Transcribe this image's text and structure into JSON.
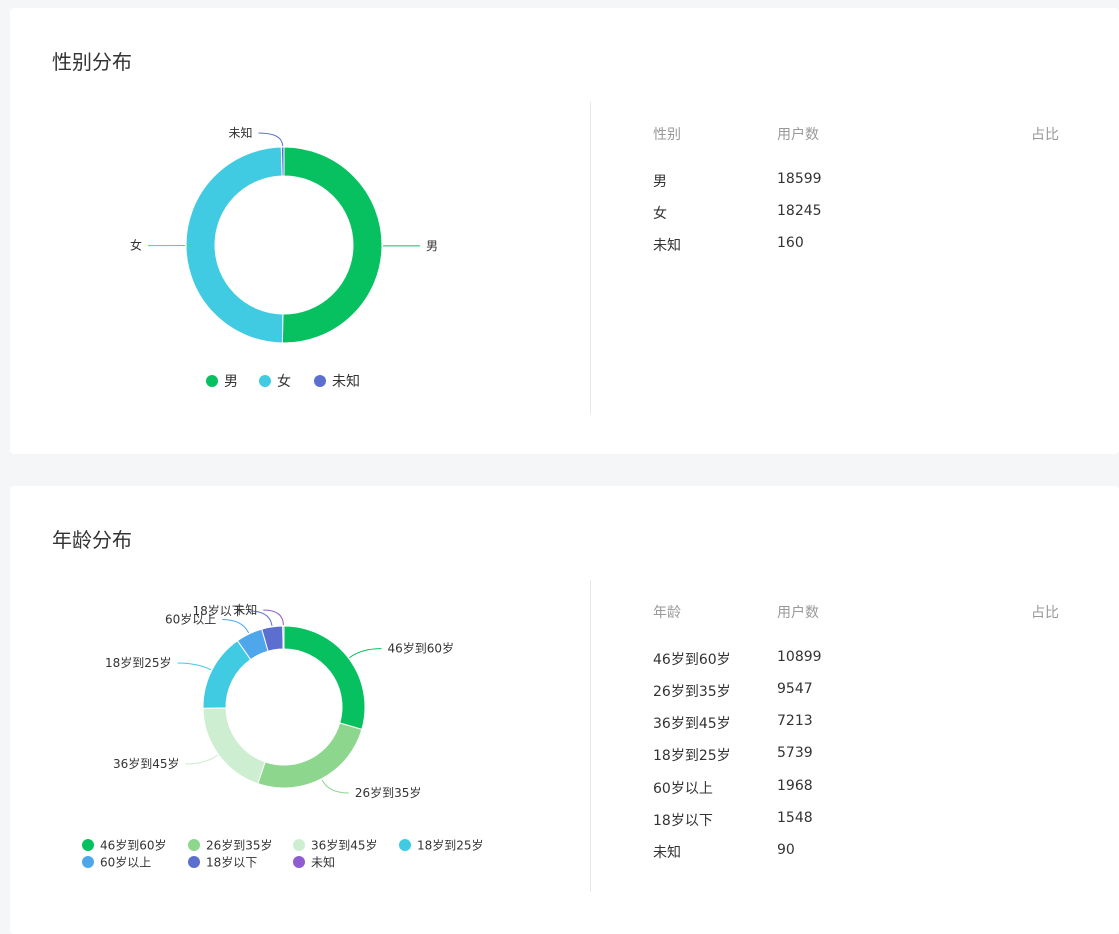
{
  "colors": {
    "male": "#07c160",
    "female": "#40cbe2",
    "unknown": "#5d6fce",
    "a1": "#07c160",
    "a2": "#8dd68d",
    "a3": "#cdeed0",
    "a4": "#40cbe2",
    "a5": "#4ea7ea",
    "a6": "#5d6fce",
    "a7": "#8f5cd1"
  },
  "gender": {
    "title": "性别分布",
    "table": {
      "headers": [
        "性别",
        "用户数",
        "占比"
      ],
      "rows": [
        {
          "label": "男",
          "count": "18599",
          "pct": ""
        },
        {
          "label": "女",
          "count": "18245",
          "pct": ""
        },
        {
          "label": "未知",
          "count": "160",
          "pct": ""
        }
      ]
    }
  },
  "age": {
    "title": "年龄分布",
    "table": {
      "headers": [
        "年龄",
        "用户数",
        "占比"
      ],
      "rows": [
        {
          "label": "46岁到60岁",
          "count": "10899",
          "pct": ""
        },
        {
          "label": "26岁到35岁",
          "count": "9547",
          "pct": ""
        },
        {
          "label": "36岁到45岁",
          "count": "7213",
          "pct": ""
        },
        {
          "label": "18岁到25岁",
          "count": "5739",
          "pct": ""
        },
        {
          "label": "60岁以上",
          "count": "1968",
          "pct": ""
        },
        {
          "label": "18岁以下",
          "count": "1548",
          "pct": ""
        },
        {
          "label": "未知",
          "count": "90",
          "pct": ""
        }
      ]
    }
  },
  "chart_data": [
    {
      "type": "pie",
      "title": "性别分布",
      "categories": [
        "男",
        "女",
        "未知"
      ],
      "values": [
        18599,
        18245,
        160
      ],
      "legend": "bottom"
    },
    {
      "type": "pie",
      "title": "年龄分布",
      "categories": [
        "46岁到60岁",
        "26岁到35岁",
        "36岁到45岁",
        "18岁到25岁",
        "60岁以上",
        "18岁以下",
        "未知"
      ],
      "values": [
        10899,
        9547,
        7213,
        5739,
        1968,
        1548,
        90
      ],
      "legend": "bottom"
    }
  ]
}
